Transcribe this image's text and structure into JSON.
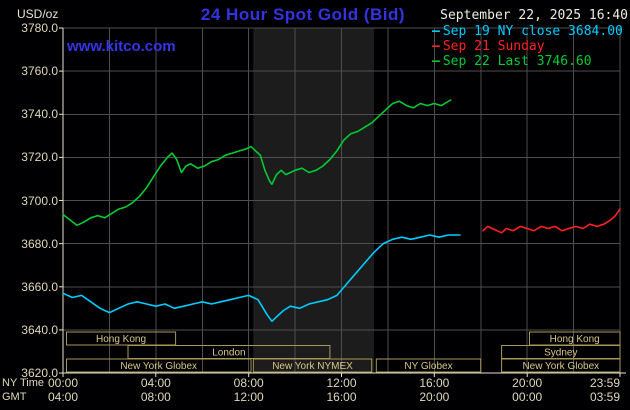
{
  "header": {
    "units_label": "USD/oz",
    "title": "24 Hour Spot Gold (Bid)",
    "site": "www.kitco.com",
    "datetime": "September 22, 2025 16:40"
  },
  "legend": {
    "dash_icon": "—",
    "items": [
      {
        "label": "Sep 19 NY close 3684.00",
        "color": "#00ccff"
      },
      {
        "label": "Sep 21 Sunday",
        "color": "#ff2222"
      },
      {
        "label": "Sep 22 Last 3746.60",
        "color": "#00cc33"
      }
    ]
  },
  "axes": {
    "time_row_labels": [
      "NY Time",
      "GMT"
    ]
  },
  "colors": {
    "background": "#000002",
    "grid": "#4e4e4e",
    "axis": "#e8e4cf",
    "band": "#1c1c1c",
    "axis_text": "#ded9b9",
    "session_border": "#a89858",
    "session_text": "#d8c888",
    "title_blue": "#3333e0",
    "date_text": "#efecdc"
  },
  "chart_data": {
    "type": "line",
    "title": "24 Hour Spot Gold (Bid)",
    "ylabel": "USD/oz",
    "ny_close": 3684.0,
    "last": 3746.6,
    "ylim": [
      3620,
      3780
    ],
    "ytick_step": 20,
    "xlim_hours": [
      0,
      24
    ],
    "grid_step_hours": 2,
    "band_hours": [
      8.2,
      13.4
    ],
    "x_ticks": [
      {
        "hour": 0,
        "ny": "00:00",
        "gmt": "04:00"
      },
      {
        "hour": 4,
        "ny": "04:00",
        "gmt": "08:00"
      },
      {
        "hour": 8,
        "ny": "08:00",
        "gmt": "12:00"
      },
      {
        "hour": 12,
        "ny": "12:00",
        "gmt": "16:00"
      },
      {
        "hour": 16,
        "ny": "16:00",
        "gmt": "20:00"
      },
      {
        "hour": 20,
        "ny": "20:00",
        "gmt": "00:00"
      },
      {
        "hour": 24,
        "ny": "23:59",
        "gmt": "03:59"
      }
    ],
    "series": [
      {
        "id": "sep19-ny-close",
        "name": "Sep 19 NY close",
        "color": "#00ccff",
        "points": [
          [
            0,
            3657
          ],
          [
            0.4,
            3655
          ],
          [
            0.8,
            3656
          ],
          [
            1.2,
            3653
          ],
          [
            1.6,
            3650
          ],
          [
            2.0,
            3648
          ],
          [
            2.4,
            3650
          ],
          [
            2.8,
            3652
          ],
          [
            3.2,
            3653
          ],
          [
            3.6,
            3652
          ],
          [
            4.0,
            3651
          ],
          [
            4.4,
            3652
          ],
          [
            4.8,
            3650
          ],
          [
            5.2,
            3651
          ],
          [
            5.6,
            3652
          ],
          [
            6.0,
            3653
          ],
          [
            6.4,
            3652
          ],
          [
            6.8,
            3653
          ],
          [
            7.2,
            3654
          ],
          [
            7.6,
            3655
          ],
          [
            8.0,
            3656
          ],
          [
            8.4,
            3654
          ],
          [
            8.8,
            3647
          ],
          [
            9.0,
            3644
          ],
          [
            9.2,
            3646
          ],
          [
            9.5,
            3649
          ],
          [
            9.8,
            3651
          ],
          [
            10.2,
            3650
          ],
          [
            10.6,
            3652
          ],
          [
            11.0,
            3653
          ],
          [
            11.4,
            3654
          ],
          [
            11.8,
            3656
          ],
          [
            12.2,
            3661
          ],
          [
            12.6,
            3666
          ],
          [
            13.0,
            3671
          ],
          [
            13.4,
            3676
          ],
          [
            13.8,
            3680
          ],
          [
            14.2,
            3682
          ],
          [
            14.6,
            3683
          ],
          [
            15.0,
            3682
          ],
          [
            15.4,
            3683
          ],
          [
            15.8,
            3684
          ],
          [
            16.2,
            3683
          ],
          [
            16.6,
            3684
          ],
          [
            17.1,
            3684
          ]
        ]
      },
      {
        "id": "sep21-sunday",
        "name": "Sep 21 Sunday",
        "color": "#ff2222",
        "points": [
          [
            18.1,
            3686
          ],
          [
            18.3,
            3688
          ],
          [
            18.5,
            3687
          ],
          [
            18.7,
            3686
          ],
          [
            18.9,
            3685
          ],
          [
            19.1,
            3687
          ],
          [
            19.4,
            3686
          ],
          [
            19.7,
            3688
          ],
          [
            20.0,
            3687
          ],
          [
            20.3,
            3686
          ],
          [
            20.6,
            3688
          ],
          [
            20.9,
            3687
          ],
          [
            21.2,
            3688
          ],
          [
            21.5,
            3686
          ],
          [
            21.8,
            3687
          ],
          [
            22.1,
            3688
          ],
          [
            22.4,
            3687
          ],
          [
            22.7,
            3689
          ],
          [
            23.0,
            3688
          ],
          [
            23.3,
            3689
          ],
          [
            23.6,
            3691
          ],
          [
            23.8,
            3693
          ],
          [
            24,
            3696
          ]
        ]
      },
      {
        "id": "sep22-last",
        "name": "Sep 22 Last",
        "color": "#00cc33",
        "points": [
          [
            0,
            3693.5
          ],
          [
            0.3,
            3691
          ],
          [
            0.6,
            3688.5
          ],
          [
            0.9,
            3690
          ],
          [
            1.2,
            3692
          ],
          [
            1.5,
            3693
          ],
          [
            1.8,
            3692
          ],
          [
            2.1,
            3694
          ],
          [
            2.4,
            3696
          ],
          [
            2.7,
            3697
          ],
          [
            3.0,
            3699
          ],
          [
            3.3,
            3702
          ],
          [
            3.6,
            3706
          ],
          [
            3.9,
            3711
          ],
          [
            4.2,
            3716
          ],
          [
            4.5,
            3720
          ],
          [
            4.7,
            3722
          ],
          [
            4.9,
            3719
          ],
          [
            5.1,
            3713
          ],
          [
            5.3,
            3716
          ],
          [
            5.5,
            3717
          ],
          [
            5.8,
            3715
          ],
          [
            6.1,
            3716
          ],
          [
            6.4,
            3718
          ],
          [
            6.7,
            3719
          ],
          [
            7.0,
            3721
          ],
          [
            7.3,
            3722
          ],
          [
            7.6,
            3723
          ],
          [
            7.9,
            3724
          ],
          [
            8.1,
            3725
          ],
          [
            8.3,
            3723
          ],
          [
            8.5,
            3721
          ],
          [
            8.7,
            3714
          ],
          [
            8.9,
            3709
          ],
          [
            9.0,
            3707.5
          ],
          [
            9.2,
            3712
          ],
          [
            9.4,
            3714
          ],
          [
            9.6,
            3712
          ],
          [
            9.8,
            3713
          ],
          [
            10.0,
            3714
          ],
          [
            10.3,
            3715
          ],
          [
            10.6,
            3713
          ],
          [
            10.9,
            3714
          ],
          [
            11.2,
            3716
          ],
          [
            11.5,
            3719
          ],
          [
            11.8,
            3723
          ],
          [
            12.1,
            3728
          ],
          [
            12.4,
            3731
          ],
          [
            12.7,
            3732
          ],
          [
            13.0,
            3734
          ],
          [
            13.3,
            3736
          ],
          [
            13.6,
            3739
          ],
          [
            13.9,
            3742
          ],
          [
            14.2,
            3745
          ],
          [
            14.5,
            3746
          ],
          [
            14.8,
            3744
          ],
          [
            15.1,
            3743
          ],
          [
            15.4,
            3745
          ],
          [
            15.7,
            3744
          ],
          [
            16.0,
            3745
          ],
          [
            16.3,
            3744
          ],
          [
            16.7,
            3746.6
          ]
        ]
      }
    ],
    "sessions": [
      {
        "label": "Hong Kong",
        "row": 0,
        "start": 0.15,
        "end": 4.85
      },
      {
        "label": "Hong Kong",
        "row": 0,
        "start": 20.1,
        "end": 24
      },
      {
        "label": "London",
        "row": 1,
        "start": 2.8,
        "end": 11.5
      },
      {
        "label": "Sydney",
        "row": 1,
        "start": 18.9,
        "end": 24
      },
      {
        "label": "New York Globex",
        "row": 2,
        "start": 0.15,
        "end": 8.1
      },
      {
        "label": "New York NYMEX",
        "row": 2,
        "start": 8.2,
        "end": 13.3
      },
      {
        "label": "NY Globex",
        "row": 2,
        "start": 13.5,
        "end": 18.0
      },
      {
        "label": "New York Globex",
        "row": 2,
        "start": 18.9,
        "end": 24
      }
    ]
  }
}
